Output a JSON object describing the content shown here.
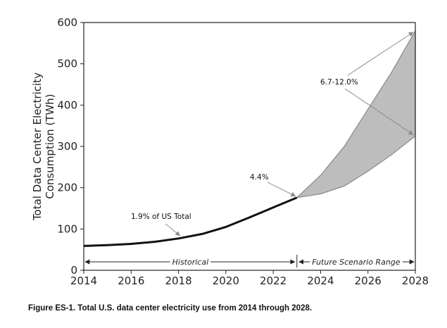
{
  "chart_data": {
    "type": "line",
    "title": "",
    "xlabel": "",
    "ylabel": "Total Data Center Electricity Consumption (TWh)",
    "ylabel_lines": [
      "Total Data Center Electricity",
      "Consumption (TWh)"
    ],
    "xlim": [
      2014,
      2028
    ],
    "ylim": [
      0,
      600
    ],
    "xticks": [
      2014,
      2016,
      2018,
      2020,
      2022,
      2024,
      2026,
      2028
    ],
    "yticks": [
      0,
      100,
      200,
      300,
      400,
      500,
      600
    ],
    "grid": false,
    "series": [
      {
        "name": "Historical",
        "x": [
          2014,
          2015,
          2016,
          2017,
          2018,
          2019,
          2020,
          2021,
          2022,
          2023
        ],
        "values": [
          59,
          61,
          64,
          69,
          77,
          88,
          105,
          128,
          152,
          176
        ]
      }
    ],
    "scenario_range": {
      "name": "Future Scenario Range",
      "x": [
        2023,
        2024,
        2025,
        2026,
        2027,
        2028
      ],
      "low": [
        176,
        185,
        204,
        240,
        280,
        325
      ],
      "high": [
        176,
        230,
        300,
        390,
        480,
        580
      ]
    },
    "annotations": [
      {
        "text": "1.9% of US Total",
        "points_to": [
          2018,
          77
        ]
      },
      {
        "text": "4.4%",
        "points_to": [
          2023,
          176
        ]
      },
      {
        "text": "6.7-12.0%",
        "points_to": [
          [
            2028,
            580
          ],
          [
            2028,
            325
          ]
        ]
      }
    ],
    "regions": [
      {
        "label": "Historical",
        "from": 2014,
        "to": 2023
      },
      {
        "label": "Future Scenario Range",
        "from": 2023,
        "to": 2028
      }
    ],
    "caption": "Figure ES-1. Total U.S. data center electricity use from 2014 through 2028.",
    "colors": {
      "line": "#111111",
      "band_fill": "#bdbdbd",
      "band_edge": "#888888",
      "arrow": "#8c8c8c",
      "axis": "#222222"
    }
  }
}
